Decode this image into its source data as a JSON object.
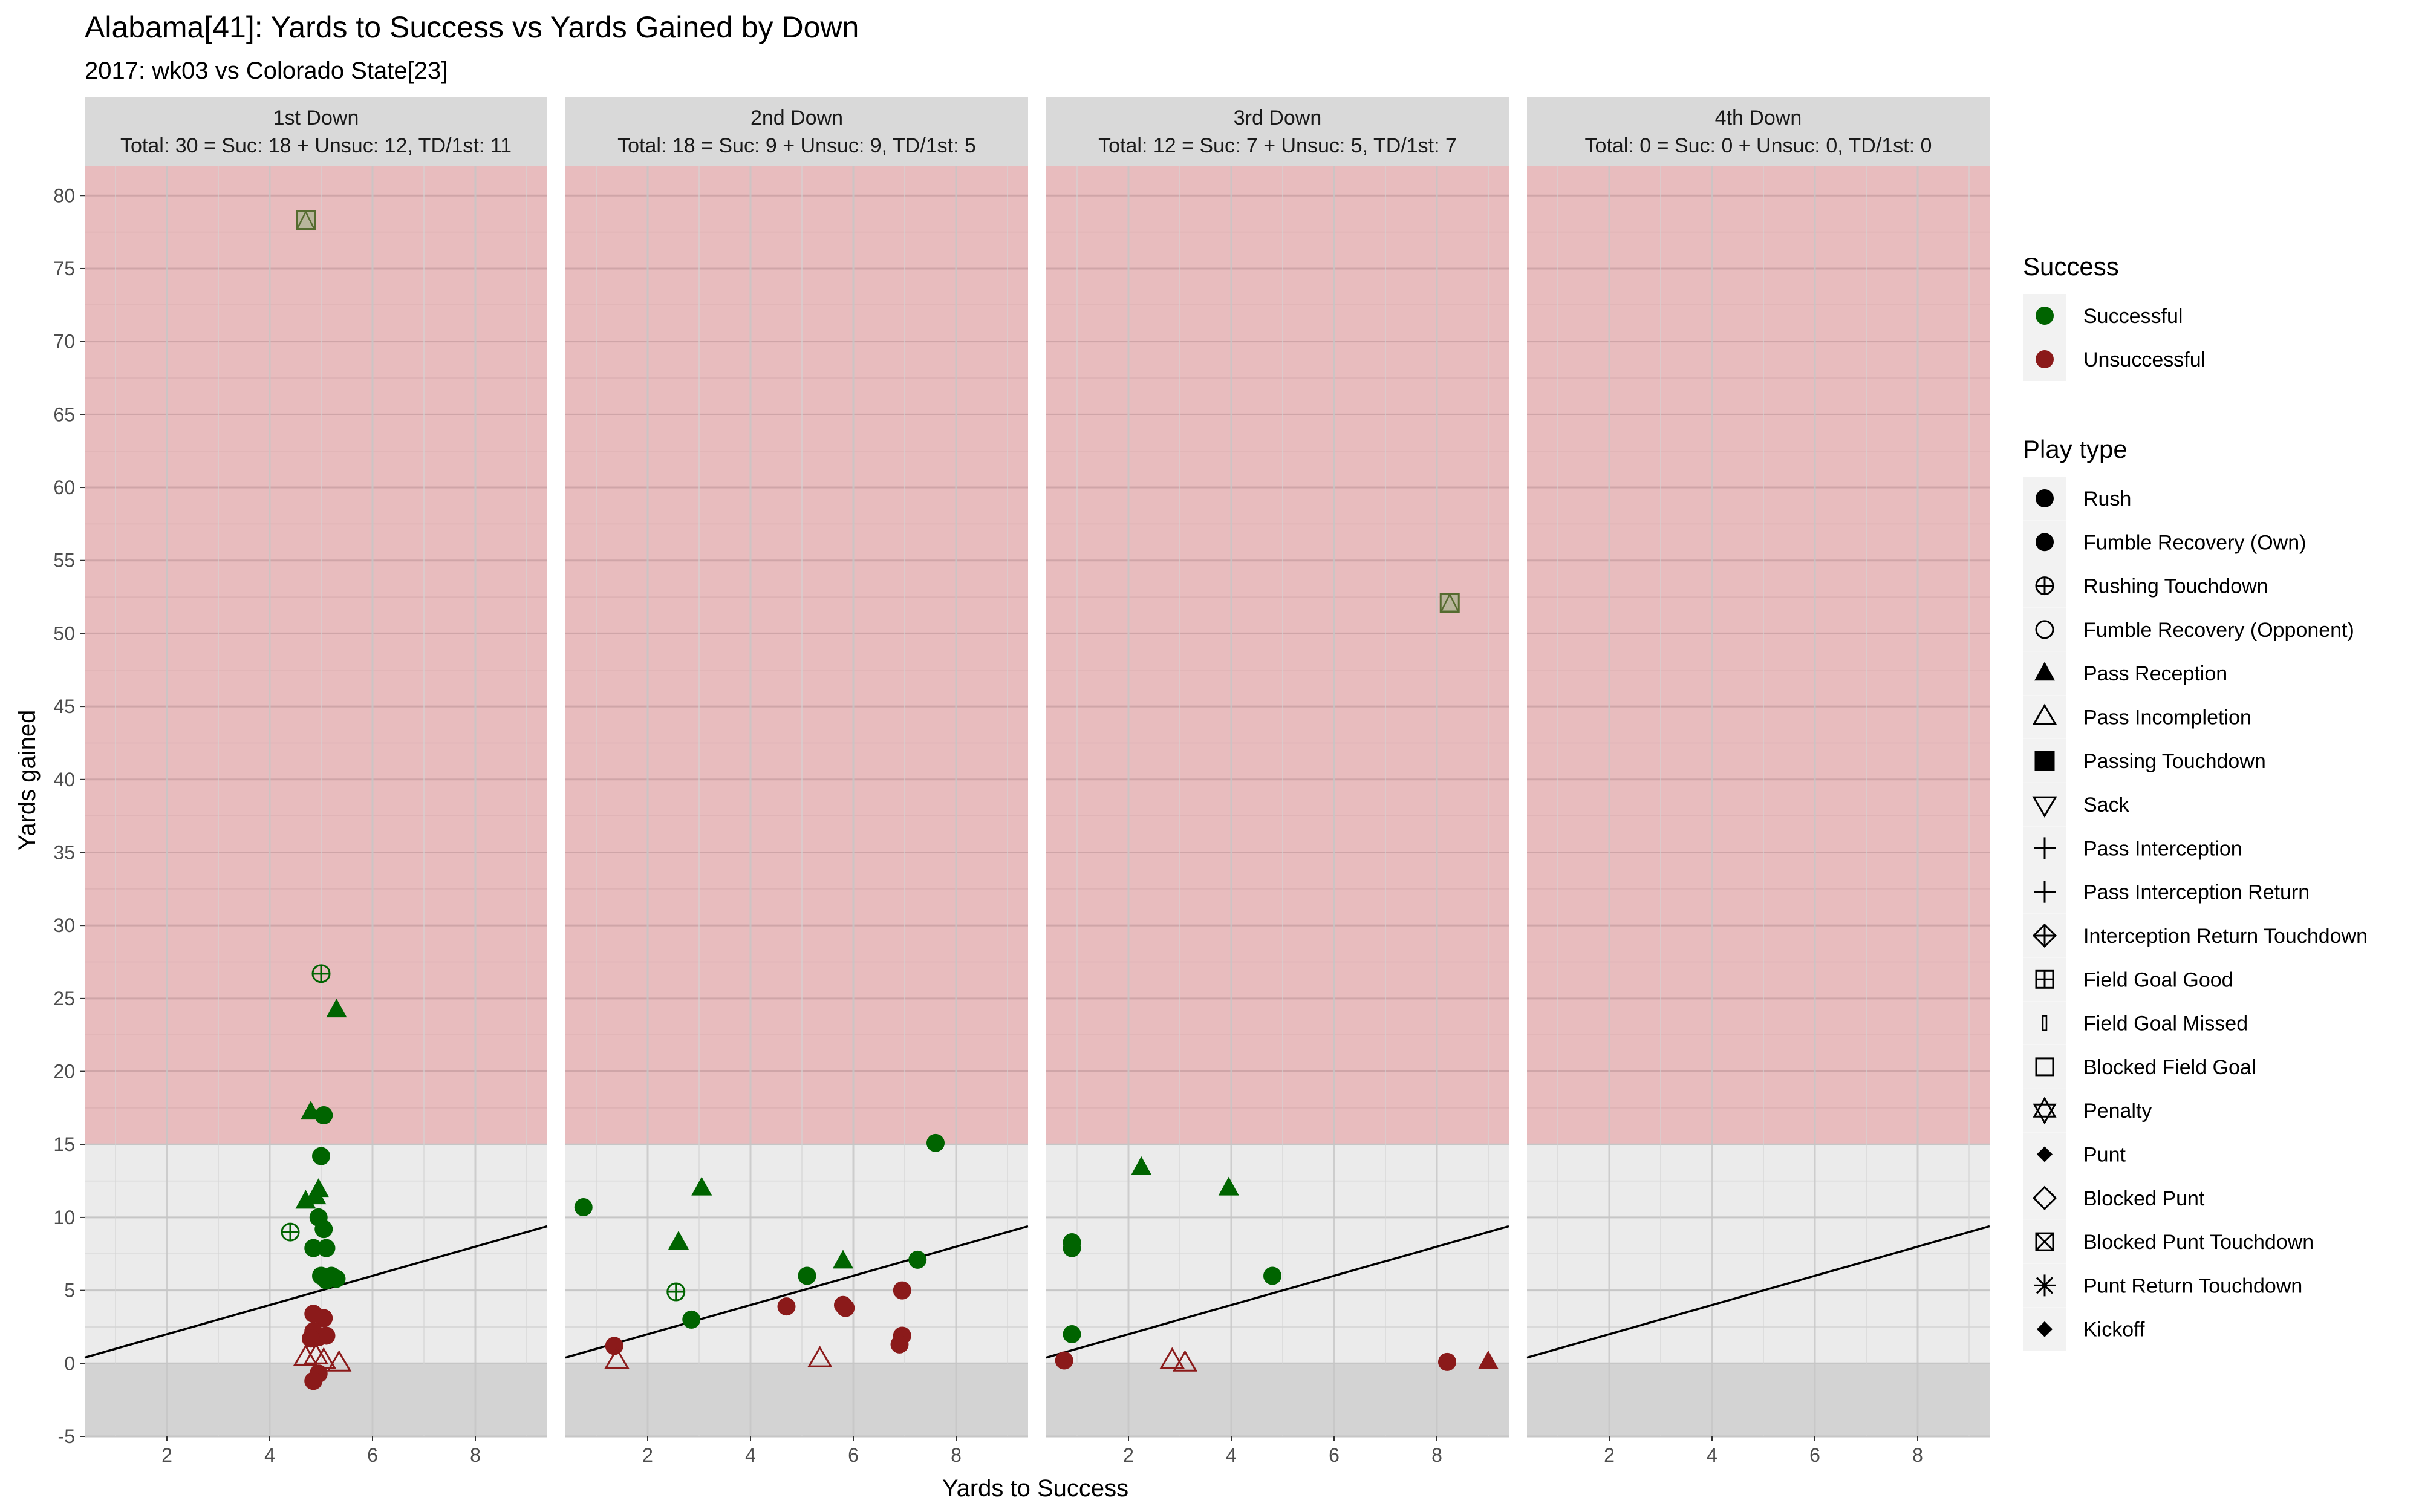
{
  "chart_data": {
    "type": "scatter",
    "title": "Alabama[41]: Yards to Success vs Yards Gained by Down",
    "subtitle": "2017: wk03 vs Colorado State[23]",
    "xlabel": "Yards to Success",
    "ylabel": "Yards gained",
    "xlim": [
      0.4,
      9.4
    ],
    "ylim": [
      -5,
      82
    ],
    "x_ticks": [
      "2",
      "4",
      "6",
      "8"
    ],
    "y_ticks": [
      "-5",
      "0",
      "5",
      "10",
      "15",
      "20",
      "25",
      "30",
      "35",
      "40",
      "45",
      "50",
      "55",
      "60",
      "65",
      "70",
      "75",
      "80"
    ],
    "grid": true,
    "success_threshold_y": 15,
    "reference_line": {
      "slope": 1,
      "intercept": 0
    },
    "colors": {
      "successful": "#006400",
      "unsuccessful": "#8b1a1a",
      "td_outline": "#556b2f",
      "panel": "#ebebeb",
      "strip": "#d9d9d9",
      "red_band": "#e8bcbe",
      "neg_band": "#d3d3d3"
    },
    "panels": [
      {
        "strip_title": "1st Down",
        "strip_summary": "Total: 30 = Suc: 18 + Unsuc: 12, TD/1st: 11",
        "points": [
          {
            "x": 4.7,
            "y": 78.3,
            "type": "passing-td",
            "success": true
          },
          {
            "x": 5.0,
            "y": 26.7,
            "type": "rushing-td",
            "success": true
          },
          {
            "x": 5.3,
            "y": 24.2,
            "type": "pass-reception",
            "success": true
          },
          {
            "x": 4.8,
            "y": 17.2,
            "type": "pass-reception",
            "success": true
          },
          {
            "x": 5.05,
            "y": 17.0,
            "type": "rush",
            "success": true
          },
          {
            "x": 5.0,
            "y": 14.2,
            "type": "rush",
            "success": true
          },
          {
            "x": 4.95,
            "y": 11.9,
            "type": "pass-reception",
            "success": true
          },
          {
            "x": 4.9,
            "y": 11.4,
            "type": "pass-reception",
            "success": true
          },
          {
            "x": 4.7,
            "y": 11.1,
            "type": "pass-reception",
            "success": true
          },
          {
            "x": 4.95,
            "y": 10.0,
            "type": "rush",
            "success": true
          },
          {
            "x": 5.05,
            "y": 9.2,
            "type": "rush",
            "success": true
          },
          {
            "x": 4.4,
            "y": 9.0,
            "type": "rushing-td",
            "success": true
          },
          {
            "x": 4.85,
            "y": 7.9,
            "type": "rush",
            "success": true
          },
          {
            "x": 5.1,
            "y": 7.9,
            "type": "rush",
            "success": true
          },
          {
            "x": 5.0,
            "y": 6.0,
            "type": "rush",
            "success": true
          },
          {
            "x": 5.2,
            "y": 6.0,
            "type": "rush",
            "success": true
          },
          {
            "x": 5.1,
            "y": 5.7,
            "type": "rush",
            "success": true
          },
          {
            "x": 5.3,
            "y": 5.8,
            "type": "rush",
            "success": true
          },
          {
            "x": 4.85,
            "y": 3.4,
            "type": "rush",
            "success": false
          },
          {
            "x": 5.05,
            "y": 3.1,
            "type": "rush",
            "success": false
          },
          {
            "x": 4.85,
            "y": 2.2,
            "type": "rush",
            "success": false
          },
          {
            "x": 4.95,
            "y": 1.8,
            "type": "rush",
            "success": false
          },
          {
            "x": 5.1,
            "y": 1.9,
            "type": "rush",
            "success": false
          },
          {
            "x": 4.8,
            "y": 1.7,
            "type": "rush",
            "success": false
          },
          {
            "x": 4.7,
            "y": 0.4,
            "type": "pass-incompletion",
            "success": false
          },
          {
            "x": 4.9,
            "y": 0.5,
            "type": "pass-incompletion",
            "success": false
          },
          {
            "x": 5.05,
            "y": 0.2,
            "type": "pass-incompletion",
            "success": false
          },
          {
            "x": 5.35,
            "y": 0.0,
            "type": "pass-incompletion",
            "success": false
          },
          {
            "x": 4.95,
            "y": -0.7,
            "type": "rush",
            "success": false
          },
          {
            "x": 4.85,
            "y": -1.2,
            "type": "rush",
            "success": false
          }
        ]
      },
      {
        "strip_title": "2nd Down",
        "strip_summary": "Total: 18 = Suc: 9 + Unsuc: 9, TD/1st: 5",
        "points": [
          {
            "x": 7.6,
            "y": 15.1,
            "type": "rush",
            "success": true
          },
          {
            "x": 3.05,
            "y": 12.0,
            "type": "pass-reception",
            "success": true
          },
          {
            "x": 0.75,
            "y": 10.7,
            "type": "rush",
            "success": true
          },
          {
            "x": 2.6,
            "y": 8.3,
            "type": "pass-reception",
            "success": true
          },
          {
            "x": 7.25,
            "y": 7.1,
            "type": "rush",
            "success": true
          },
          {
            "x": 5.8,
            "y": 7.0,
            "type": "pass-reception",
            "success": true
          },
          {
            "x": 5.1,
            "y": 6.0,
            "type": "rush",
            "success": true
          },
          {
            "x": 2.55,
            "y": 4.9,
            "type": "rushing-td",
            "success": true
          },
          {
            "x": 2.85,
            "y": 3.0,
            "type": "rush",
            "success": true
          },
          {
            "x": 6.95,
            "y": 5.0,
            "type": "rush",
            "success": false
          },
          {
            "x": 4.7,
            "y": 3.9,
            "type": "rush",
            "success": false
          },
          {
            "x": 5.8,
            "y": 4.0,
            "type": "rush",
            "success": false
          },
          {
            "x": 5.85,
            "y": 3.8,
            "type": "rush",
            "success": false
          },
          {
            "x": 6.95,
            "y": 1.9,
            "type": "rush",
            "success": false
          },
          {
            "x": 6.9,
            "y": 1.3,
            "type": "rush",
            "success": false
          },
          {
            "x": 1.35,
            "y": 1.2,
            "type": "rush",
            "success": false
          },
          {
            "x": 1.4,
            "y": 0.2,
            "type": "pass-incompletion",
            "success": false
          },
          {
            "x": 5.35,
            "y": 0.3,
            "type": "pass-incompletion",
            "success": false
          }
        ]
      },
      {
        "strip_title": "3rd Down",
        "strip_summary": "Total: 12 = Suc: 7 + Unsuc: 5, TD/1st: 7",
        "points": [
          {
            "x": 8.25,
            "y": 52.1,
            "type": "passing-td",
            "success": true
          },
          {
            "x": 2.25,
            "y": 13.4,
            "type": "pass-reception",
            "success": true
          },
          {
            "x": 3.95,
            "y": 12.0,
            "type": "pass-reception",
            "success": true
          },
          {
            "x": 0.9,
            "y": 8.3,
            "type": "rush",
            "success": true
          },
          {
            "x": 0.9,
            "y": 7.9,
            "type": "rush",
            "success": true
          },
          {
            "x": 4.8,
            "y": 6.0,
            "type": "rush",
            "success": true
          },
          {
            "x": 0.9,
            "y": 2.0,
            "type": "rush",
            "success": true
          },
          {
            "x": 0.75,
            "y": 0.2,
            "type": "rush",
            "success": false
          },
          {
            "x": 2.85,
            "y": 0.2,
            "type": "pass-incompletion",
            "success": false
          },
          {
            "x": 3.1,
            "y": 0.0,
            "type": "pass-incompletion",
            "success": false
          },
          {
            "x": 8.2,
            "y": 0.1,
            "type": "rush",
            "success": false
          },
          {
            "x": 9.0,
            "y": 0.1,
            "type": "pass-reception",
            "success": false
          }
        ]
      },
      {
        "strip_title": "4th Down",
        "strip_summary": "Total: 0 = Suc: 0 + Unsuc: 0, TD/1st: 0",
        "points": []
      }
    ],
    "legend_success": {
      "title": "Success",
      "items": [
        {
          "label": "Successful",
          "color": "#006400"
        },
        {
          "label": "Unsuccessful",
          "color": "#8b1a1a"
        }
      ]
    },
    "legend_playtype": {
      "title": "Play type",
      "items": [
        {
          "label": "Rush",
          "shape": "circle-filled"
        },
        {
          "label": "Fumble Recovery (Own)",
          "shape": "circle-filled"
        },
        {
          "label": "Rushing Touchdown",
          "shape": "circle-plus"
        },
        {
          "label": "Fumble Recovery (Opponent)",
          "shape": "circle-open"
        },
        {
          "label": "Pass Reception",
          "shape": "triangle-filled"
        },
        {
          "label": "Pass Incompletion",
          "shape": "triangle-open"
        },
        {
          "label": "Passing Touchdown",
          "shape": "square-triangle"
        },
        {
          "label": "Sack",
          "shape": "triangle-down-open"
        },
        {
          "label": "Pass Interception",
          "shape": "plus"
        },
        {
          "label": "Pass Interception Return",
          "shape": "plus"
        },
        {
          "label": "Interception Return Touchdown",
          "shape": "diamond-plus"
        },
        {
          "label": "Field Goal Good",
          "shape": "square-plus"
        },
        {
          "label": "Field Goal Missed",
          "shape": "thin-rect"
        },
        {
          "label": "Blocked Field Goal",
          "shape": "square-open"
        },
        {
          "label": "Penalty",
          "shape": "star-of-david"
        },
        {
          "label": "Punt",
          "shape": "diamond-filled"
        },
        {
          "label": "Blocked Punt",
          "shape": "diamond-open"
        },
        {
          "label": "Blocked Punt Touchdown",
          "shape": "square-x"
        },
        {
          "label": "Punt Return Touchdown",
          "shape": "asterisk"
        },
        {
          "label": "Kickoff",
          "shape": "diamond-filled"
        }
      ]
    }
  }
}
